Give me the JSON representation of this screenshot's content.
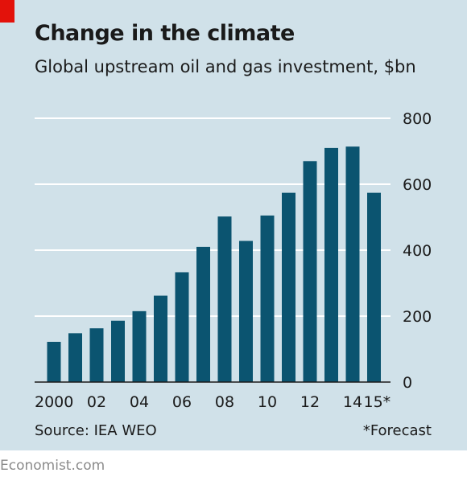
{
  "title": "Change in the climate",
  "subtitle": "Global upstream oil and gas investment, $bn",
  "source": "Source: IEA WEO",
  "footnote": "*Forecast",
  "brand": "Economist.com",
  "colors": {
    "background": "#d0e1e9",
    "bar": "#0b5470",
    "gridline": "#ffffff",
    "baseline": "#1a1a1a",
    "accent": "#e3120b"
  },
  "chart_data": {
    "type": "bar",
    "title": "Change in the climate",
    "subtitle": "Global upstream oil and gas investment, $bn",
    "xlabel": "",
    "ylabel": "",
    "categories": [
      "2000",
      "2001",
      "2002",
      "2003",
      "2004",
      "2005",
      "2006",
      "2007",
      "2008",
      "2009",
      "2010",
      "2011",
      "2012",
      "2013",
      "2014",
      "2015"
    ],
    "values": [
      122,
      148,
      163,
      186,
      215,
      262,
      333,
      410,
      502,
      428,
      505,
      574,
      670,
      710,
      714,
      574
    ],
    "x_tick_labels": [
      {
        "category": "2000",
        "label": "2000"
      },
      {
        "category": "2002",
        "label": "02"
      },
      {
        "category": "2004",
        "label": "04"
      },
      {
        "category": "2006",
        "label": "06"
      },
      {
        "category": "2008",
        "label": "08"
      },
      {
        "category": "2010",
        "label": "10"
      },
      {
        "category": "2012",
        "label": "12"
      },
      {
        "category": "2014",
        "label": "14"
      },
      {
        "category": "2015",
        "label": "15*"
      }
    ],
    "y_ticks": [
      "0",
      "200",
      "400",
      "600",
      "800"
    ],
    "ylim": [
      0,
      800
    ],
    "y_axis_position": "right",
    "grid": true
  }
}
